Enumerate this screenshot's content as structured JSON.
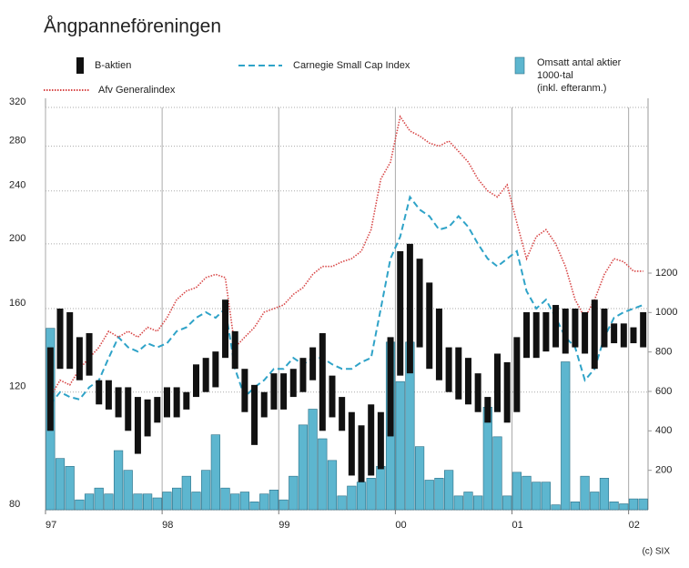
{
  "chart_data": {
    "type": "combo",
    "title": "Ångpanneföreningen",
    "footer": "(c) SIX",
    "log_y": true,
    "grid": true,
    "ylim": [
      80,
      320
    ],
    "yticks": [
      80,
      120,
      160,
      200,
      240,
      280,
      320
    ],
    "y2lim": [
      0,
      2040
    ],
    "y2ticks": [
      200,
      400,
      600,
      800,
      1000,
      1200
    ],
    "categories": [
      "97",
      null,
      null,
      null,
      null,
      null,
      null,
      null,
      null,
      null,
      null,
      null,
      "98",
      null,
      null,
      null,
      null,
      null,
      null,
      null,
      null,
      null,
      null,
      null,
      "99",
      null,
      null,
      null,
      null,
      null,
      null,
      null,
      null,
      null,
      null,
      null,
      "00",
      null,
      null,
      null,
      null,
      null,
      null,
      null,
      null,
      null,
      null,
      null,
      "01",
      null,
      null,
      null,
      null,
      null,
      null,
      null,
      null,
      null,
      null,
      null,
      "02",
      null
    ],
    "series": [
      {
        "name": [
          "Omsatt antal aktier",
          "1000-tal",
          "(inkl. efteranm.)"
        ],
        "type": "bar",
        "axis": "y2",
        "color": "#5db6cf",
        "values": [
          920,
          260,
          220,
          50,
          80,
          110,
          80,
          300,
          200,
          80,
          80,
          60,
          90,
          110,
          170,
          90,
          200,
          380,
          110,
          80,
          90,
          40,
          80,
          100,
          50,
          170,
          430,
          510,
          360,
          250,
          70,
          120,
          140,
          160,
          220,
          850,
          650,
          850,
          320,
          150,
          160,
          200,
          70,
          90,
          70,
          520,
          370,
          70,
          190,
          170,
          140,
          140,
          25,
          750,
          40,
          170,
          90,
          160,
          40,
          30,
          55,
          55
        ]
      },
      {
        "name": "Carnegie Small Cap Index",
        "type": "line",
        "dash": "dashed",
        "color": "#2fa3c8",
        "values": [
          115,
          120,
          118,
          117,
          122,
          125,
          135,
          145,
          140,
          138,
          142,
          140,
          142,
          148,
          150,
          155,
          158,
          155,
          160,
          130,
          118,
          122,
          125,
          130,
          130,
          135,
          132,
          135,
          135,
          132,
          130,
          130,
          133,
          135,
          160,
          190,
          205,
          235,
          225,
          220,
          210,
          212,
          220,
          212,
          200,
          190,
          185,
          190,
          195,
          170,
          160,
          165,
          155,
          145,
          140,
          125,
          130,
          145,
          155,
          158,
          160,
          162
        ]
      },
      {
        "name": "Afv Generalindex",
        "type": "line",
        "dash": "dotted",
        "color": "#d84848",
        "values": [
          118,
          125,
          123,
          130,
          135,
          140,
          148,
          145,
          148,
          145,
          150,
          148,
          155,
          165,
          170,
          172,
          178,
          180,
          178,
          140,
          145,
          150,
          158,
          160,
          162,
          168,
          172,
          180,
          185,
          185,
          188,
          190,
          195,
          210,
          250,
          265,
          310,
          295,
          290,
          283,
          280,
          285,
          275,
          265,
          250,
          240,
          235,
          245,
          215,
          190,
          205,
          210,
          200,
          185,
          165,
          155,
          165,
          180,
          190,
          188,
          182,
          182
        ]
      },
      {
        "name": "B-aktien",
        "type": "range",
        "color": "#111111",
        "low": [
          105,
          130,
          130,
          125,
          127,
          115,
          113,
          110,
          105,
          97,
          103,
          108,
          110,
          110,
          113,
          118,
          120,
          122,
          135,
          130,
          112,
          100,
          110,
          113,
          113,
          118,
          120,
          125,
          105,
          110,
          105,
          90,
          88,
          90,
          92,
          103,
          127,
          128,
          140,
          130,
          125,
          120,
          117,
          115,
          112,
          108,
          112,
          108,
          112,
          135,
          135,
          138,
          140,
          137,
          140,
          137,
          130,
          140,
          142,
          140,
          142,
          140
        ],
        "high": [
          140,
          160,
          158,
          145,
          147,
          125,
          125,
          122,
          122,
          118,
          117,
          118,
          122,
          122,
          120,
          132,
          135,
          138,
          165,
          148,
          130,
          123,
          120,
          128,
          128,
          130,
          135,
          140,
          147,
          127,
          118,
          112,
          107,
          115,
          112,
          145,
          195,
          200,
          190,
          175,
          160,
          140,
          140,
          135,
          128,
          118,
          137,
          133,
          145,
          158,
          158,
          158,
          162,
          160,
          160,
          158,
          165,
          160,
          152,
          152,
          150,
          158
        ]
      }
    ]
  }
}
